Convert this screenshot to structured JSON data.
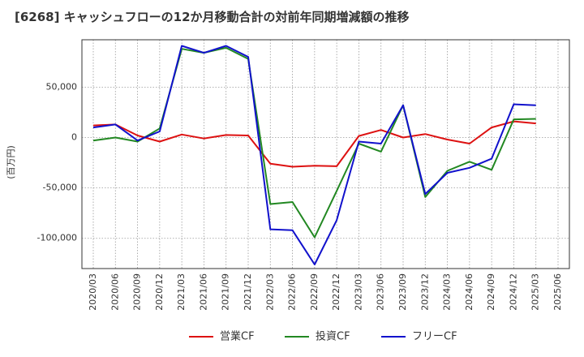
{
  "chart_data": {
    "type": "line",
    "title": "[6268]  キャッシュフローの12か月移動合計の対前年同期増減額の推移",
    "ylabel": "(百万円)",
    "xlabel": "",
    "x_ticks": [
      "2020/03",
      "2020/06",
      "2020/09",
      "2020/12",
      "2021/03",
      "2021/06",
      "2021/09",
      "2021/12",
      "2022/03",
      "2022/06",
      "2022/09",
      "2022/12",
      "2023/03",
      "2023/06",
      "2023/09",
      "2023/12",
      "2024/03",
      "2024/06",
      "2024/09",
      "2024/12",
      "2025/03",
      "2025/06"
    ],
    "y_ticks": [
      50000,
      0,
      -50000,
      -100000
    ],
    "y_tick_labels": [
      "50,000",
      "0",
      "-50,000",
      "-100,000"
    ],
    "ylim": [
      -130000,
      97000
    ],
    "grid": true,
    "legend_position": "bottom",
    "series": [
      {
        "name": "営業CF",
        "color": "#dd1111",
        "values": [
          12000,
          13000,
          2000,
          -4000,
          3000,
          -1000,
          2500,
          2000,
          -26000,
          -29000,
          -28000,
          -28500,
          1500,
          7500,
          0,
          3500,
          -2000,
          -6000,
          10000,
          16000,
          14000,
          null
        ]
      },
      {
        "name": "投資CF",
        "color": "#228822",
        "values": [
          -3000,
          0,
          -4000,
          9000,
          88000,
          84000,
          89000,
          78000,
          -66000,
          -64000,
          -99000,
          -53000,
          -6000,
          -14000,
          32000,
          -59000,
          -33000,
          -24000,
          -32000,
          18000,
          18500,
          null
        ]
      },
      {
        "name": "フリーCF",
        "color": "#1111cc",
        "values": [
          10000,
          13000,
          -3000,
          6000,
          91000,
          84000,
          91000,
          80000,
          -91000,
          -92000,
          -126000,
          -82000,
          -4000,
          -6000,
          32000,
          -56000,
          -35000,
          -30000,
          -21000,
          33000,
          32000,
          null
        ]
      }
    ]
  }
}
